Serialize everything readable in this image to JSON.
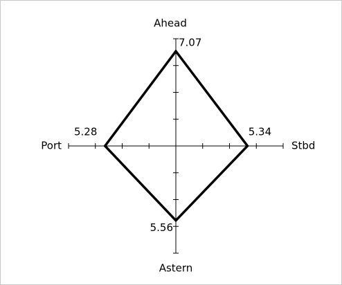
{
  "chart_data": {
    "type": "compass",
    "categories": [
      "Ahead",
      "Stbd",
      "Astern",
      "Port"
    ],
    "values": [
      7.07,
      5.34,
      5.56,
      5.28
    ],
    "rlim": [
      0,
      8
    ],
    "rticks": [
      2,
      4,
      6
    ],
    "color": "#000000"
  }
}
